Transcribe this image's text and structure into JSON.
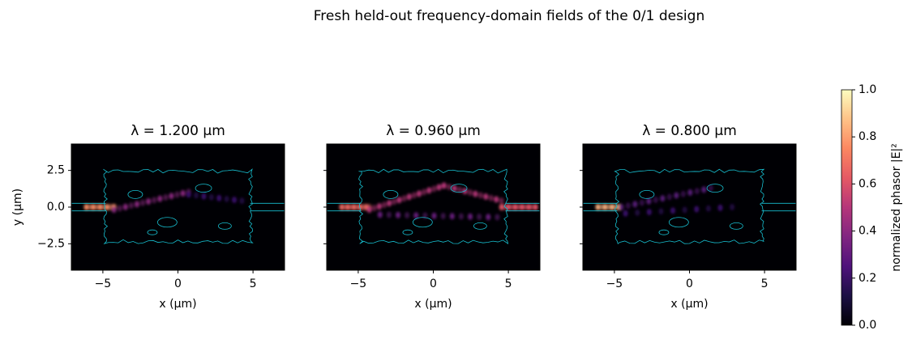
{
  "title": "Fresh held-out frequency-domain fields of the 0/1 design",
  "chart_data": [
    {
      "type": "heatmap",
      "title": "λ = 1.200 μm",
      "xlabel": "x (μm)",
      "ylabel": "y (μm)",
      "xlim": [
        -7.1,
        7.1
      ],
      "ylim": [
        -4.3,
        4.3
      ],
      "xticks": [
        {
          "value": -5,
          "label": "−5"
        },
        0,
        5
      ],
      "yticks": [
        {
          "value": -2.5,
          "label": "−2.5"
        },
        {
          "value": 0,
          "label": "0.0"
        },
        2.5
      ],
      "sharey": false
    },
    {
      "type": "heatmap",
      "title": "λ = 0.960 μm",
      "xlabel": "x (μm)",
      "xlim": [
        -7.1,
        7.1
      ],
      "ylim": [
        -4.3,
        4.3
      ],
      "xticks": [
        {
          "value": -5,
          "label": "−5"
        },
        0,
        5
      ],
      "yticks": [
        -2.5,
        0,
        2.5
      ],
      "sharey": true
    },
    {
      "type": "heatmap",
      "title": "λ = 0.800 μm",
      "xlabel": "x (μm)",
      "xlim": [
        -7.1,
        7.1
      ],
      "ylim": [
        -4.3,
        4.3
      ],
      "xticks": [
        {
          "value": -5,
          "label": "−5"
        },
        0,
        5
      ],
      "yticks": [
        -2.5,
        0,
        2.5
      ],
      "sharey": true
    }
  ],
  "colorbar": {
    "label": "normalized phasor |E|²",
    "colormap": "magma",
    "ylim": [
      0,
      1
    ],
    "yticks": [
      {
        "value": 0,
        "label": "0.0"
      },
      0.2,
      0.4,
      0.6,
      0.8,
      {
        "value": 1,
        "label": "1.0"
      }
    ]
  }
}
